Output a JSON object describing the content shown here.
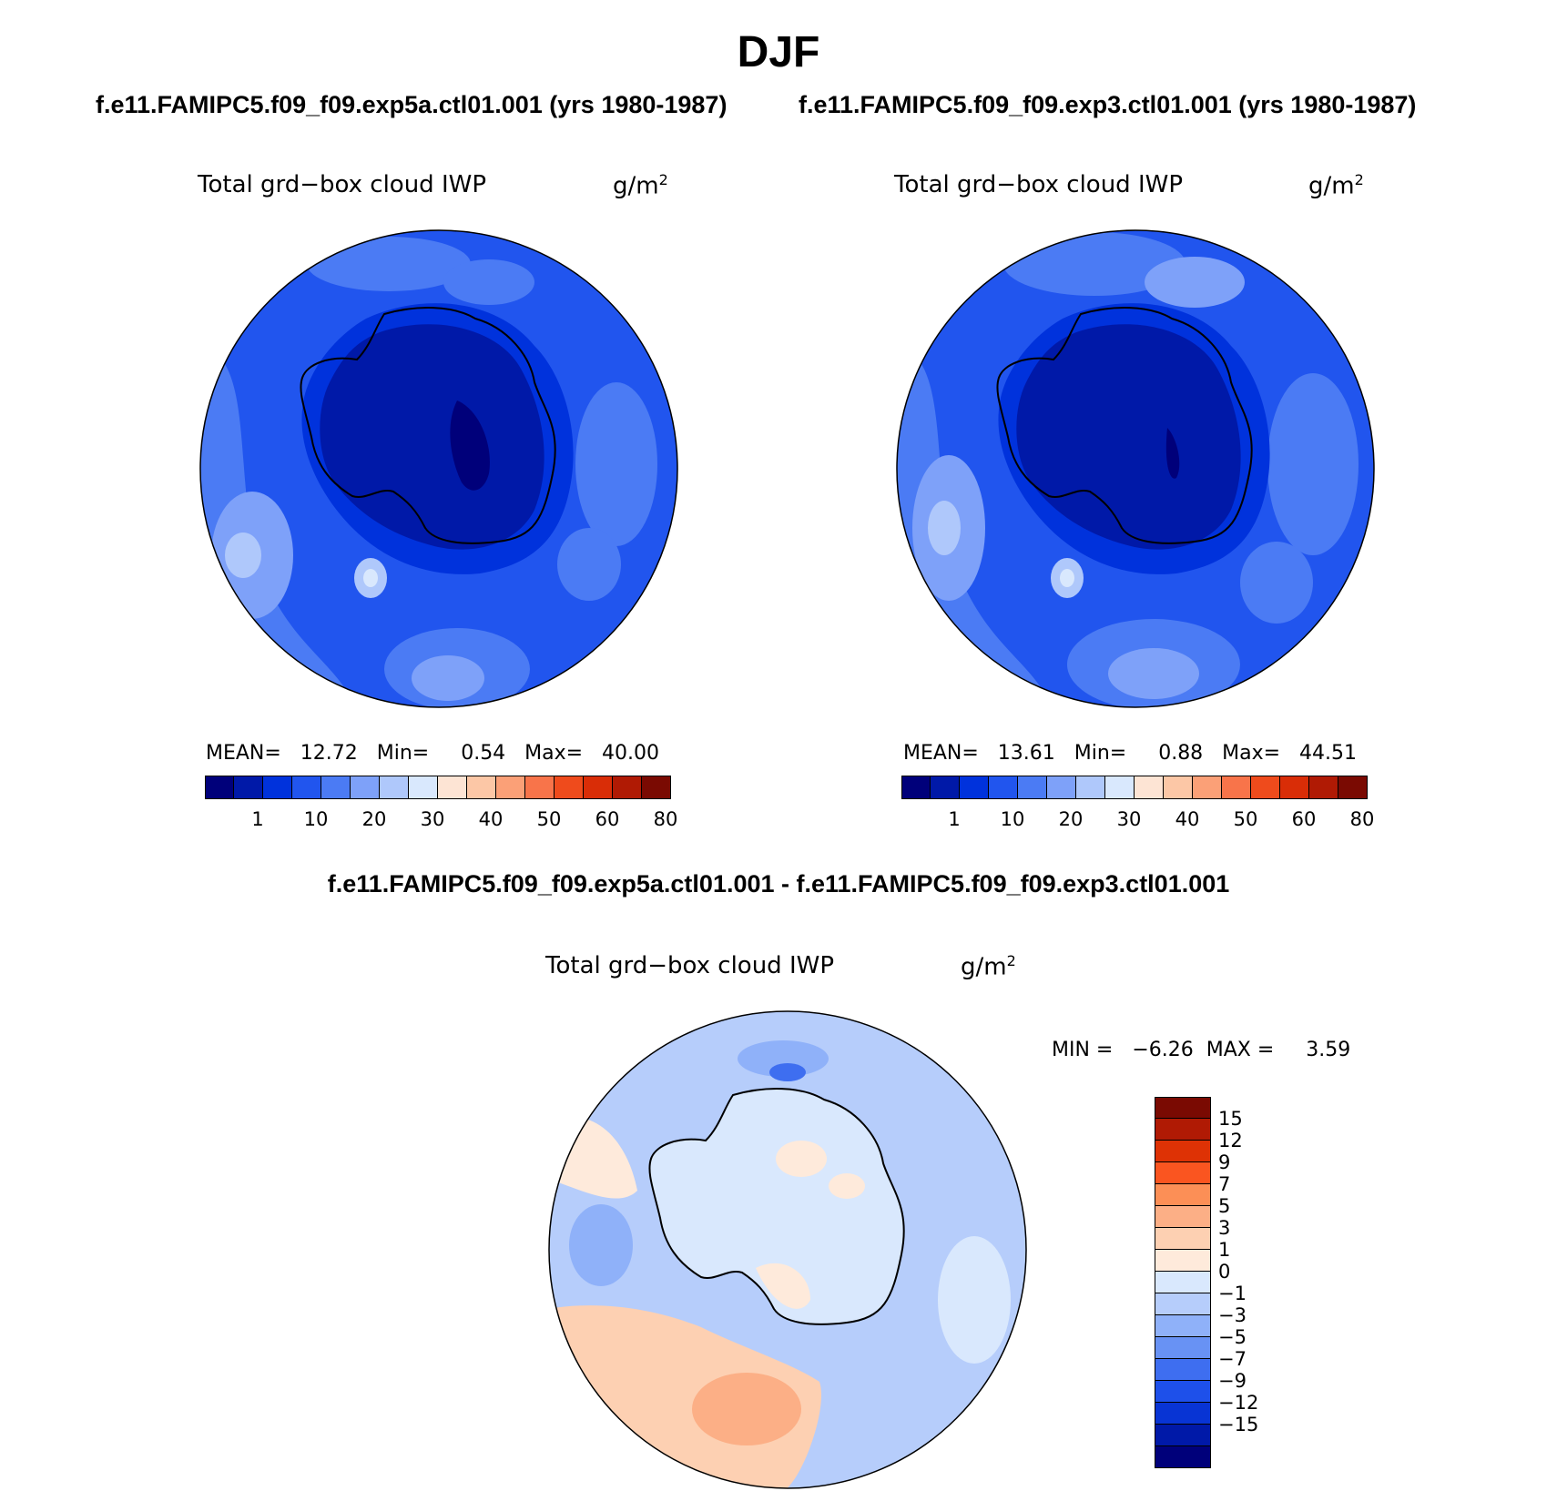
{
  "figure": {
    "title": "DJF",
    "case1_title": "f.e11.FAMIPC5.f09_f09.exp5a.ctl01.001 (yrs 1980-1987)",
    "case2_title": "f.e11.FAMIPC5.f09_f09.exp3.ctl01.001 (yrs 1980-1987)",
    "diff_title": "f.e11.FAMIPC5.f09_f09.exp5a.ctl01.001 - f.e11.FAMIPC5.f09_f09.exp3.ctl01.001"
  },
  "panels": [
    {
      "variable": "Total grd−box cloud IWP",
      "units": "g/m",
      "units_exp": "2",
      "stats": "MEAN=   12.72   Min=     0.54   Max=   40.00"
    },
    {
      "variable": "Total grd−box cloud IWP",
      "units": "g/m",
      "units_exp": "2",
      "stats": "MEAN=   13.61   Min=     0.88   Max=   44.51"
    },
    {
      "variable": "Total grd−box cloud IWP",
      "units": "g/m",
      "units_exp": "2",
      "stats": "MIN =   −6.26  MAX =     3.59"
    }
  ],
  "colorbar_horizontal": {
    "colors": [
      "#00007a",
      "#0019a8",
      "#0032dc",
      "#2155ee",
      "#4b7bf4",
      "#7ea1f9",
      "#afc8fb",
      "#d9e8fd",
      "#fde4d4",
      "#fcc7a6",
      "#fba077",
      "#f8744a",
      "#ef4b1c",
      "#d92d07",
      "#b01a04",
      "#7a0a02"
    ],
    "labels": [
      "1",
      "10",
      "20",
      "30",
      "40",
      "50",
      "60",
      "80"
    ]
  },
  "colorbar_vertical": {
    "colors": [
      "#7a0a02",
      "#b01a04",
      "#de3205",
      "#fa5520",
      "#fc8f56",
      "#fcaf86",
      "#fdd0b2",
      "#feeadb",
      "#d9e8fd",
      "#b6cdfb",
      "#8fb1f9",
      "#6892f4",
      "#3e6ef0",
      "#1e50ea",
      "#0834d4",
      "#0019a8",
      "#00007a"
    ],
    "labels": [
      "15",
      "12",
      "9",
      "7",
      "5",
      "3",
      "1",
      "0",
      "−1",
      "−3",
      "−5",
      "−7",
      "−9",
      "−12",
      "−15"
    ]
  }
}
